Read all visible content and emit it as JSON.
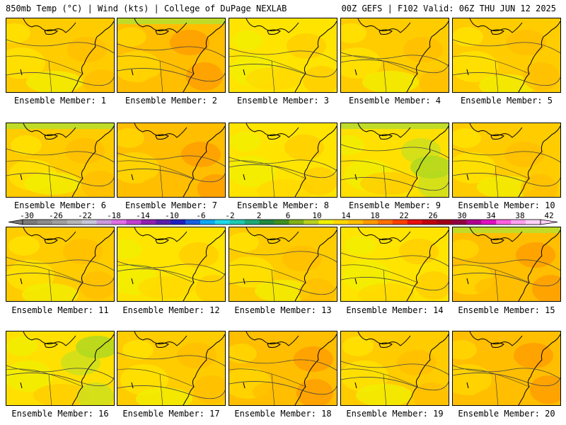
{
  "header": {
    "left": "850mb Temp (°C) | Wind (kts) | College of DuPage NEXLAB",
    "right": "00Z GEFS | F102 Valid: 06Z THU JUN 12 2025"
  },
  "colorbar": {
    "labels": [
      "-30",
      "-26",
      "-22",
      "-18",
      "-14",
      "-10",
      "-6",
      "-2",
      "2",
      "6",
      "10",
      "14",
      "18",
      "22",
      "26",
      "30",
      "34",
      "38",
      "42"
    ],
    "colors": [
      "#7a7a7a",
      "#8c8c8c",
      "#9f9f9f",
      "#b4b4b4",
      "#c6c6d8",
      "#c89adc",
      "#e070e6",
      "#c040d0",
      "#9020b0",
      "#5a20a8",
      "#2020c0",
      "#1860e0",
      "#10a8f0",
      "#20d8e8",
      "#20c8b0",
      "#20a878",
      "#208840",
      "#409020",
      "#80b018",
      "#b8d020",
      "#f0f000",
      "#ffd800",
      "#ffbe00",
      "#ff9a00",
      "#ff7000",
      "#ff4000",
      "#e81010",
      "#c00010",
      "#a00018",
      "#900040",
      "#b00090",
      "#e010c0",
      "#ff60e0",
      "#ffa0f0",
      "#ffd0f8"
    ]
  },
  "panels": [
    {
      "label": "Ensemble Member: 1",
      "tone": "mid"
    },
    {
      "label": "Ensemble Member: 2",
      "tone": "warm"
    },
    {
      "label": "Ensemble Member: 3",
      "tone": "yellow"
    },
    {
      "label": "Ensemble Member: 4",
      "tone": "mid"
    },
    {
      "label": "Ensemble Member: 5",
      "tone": "mid"
    },
    {
      "label": "Ensemble Member: 6",
      "tone": "mid"
    },
    {
      "label": "Ensemble Member: 7",
      "tone": "warm"
    },
    {
      "label": "Ensemble Member: 8",
      "tone": "yellow"
    },
    {
      "label": "Ensemble Member: 9",
      "tone": "cool"
    },
    {
      "label": "Ensemble Member: 10",
      "tone": "mid"
    },
    {
      "label": "Ensemble Member: 11",
      "tone": "mid"
    },
    {
      "label": "Ensemble Member: 12",
      "tone": "yellow"
    },
    {
      "label": "Ensemble Member: 13",
      "tone": "mid"
    },
    {
      "label": "Ensemble Member: 14",
      "tone": "yellow"
    },
    {
      "label": "Ensemble Member: 15",
      "tone": "warm"
    },
    {
      "label": "Ensemble Member: 16",
      "tone": "cool"
    },
    {
      "label": "Ensemble Member: 17",
      "tone": "mid"
    },
    {
      "label": "Ensemble Member: 18",
      "tone": "warm"
    },
    {
      "label": "Ensemble Member: 19",
      "tone": "mid"
    },
    {
      "label": "Ensemble Member: 20",
      "tone": "warm"
    }
  ]
}
